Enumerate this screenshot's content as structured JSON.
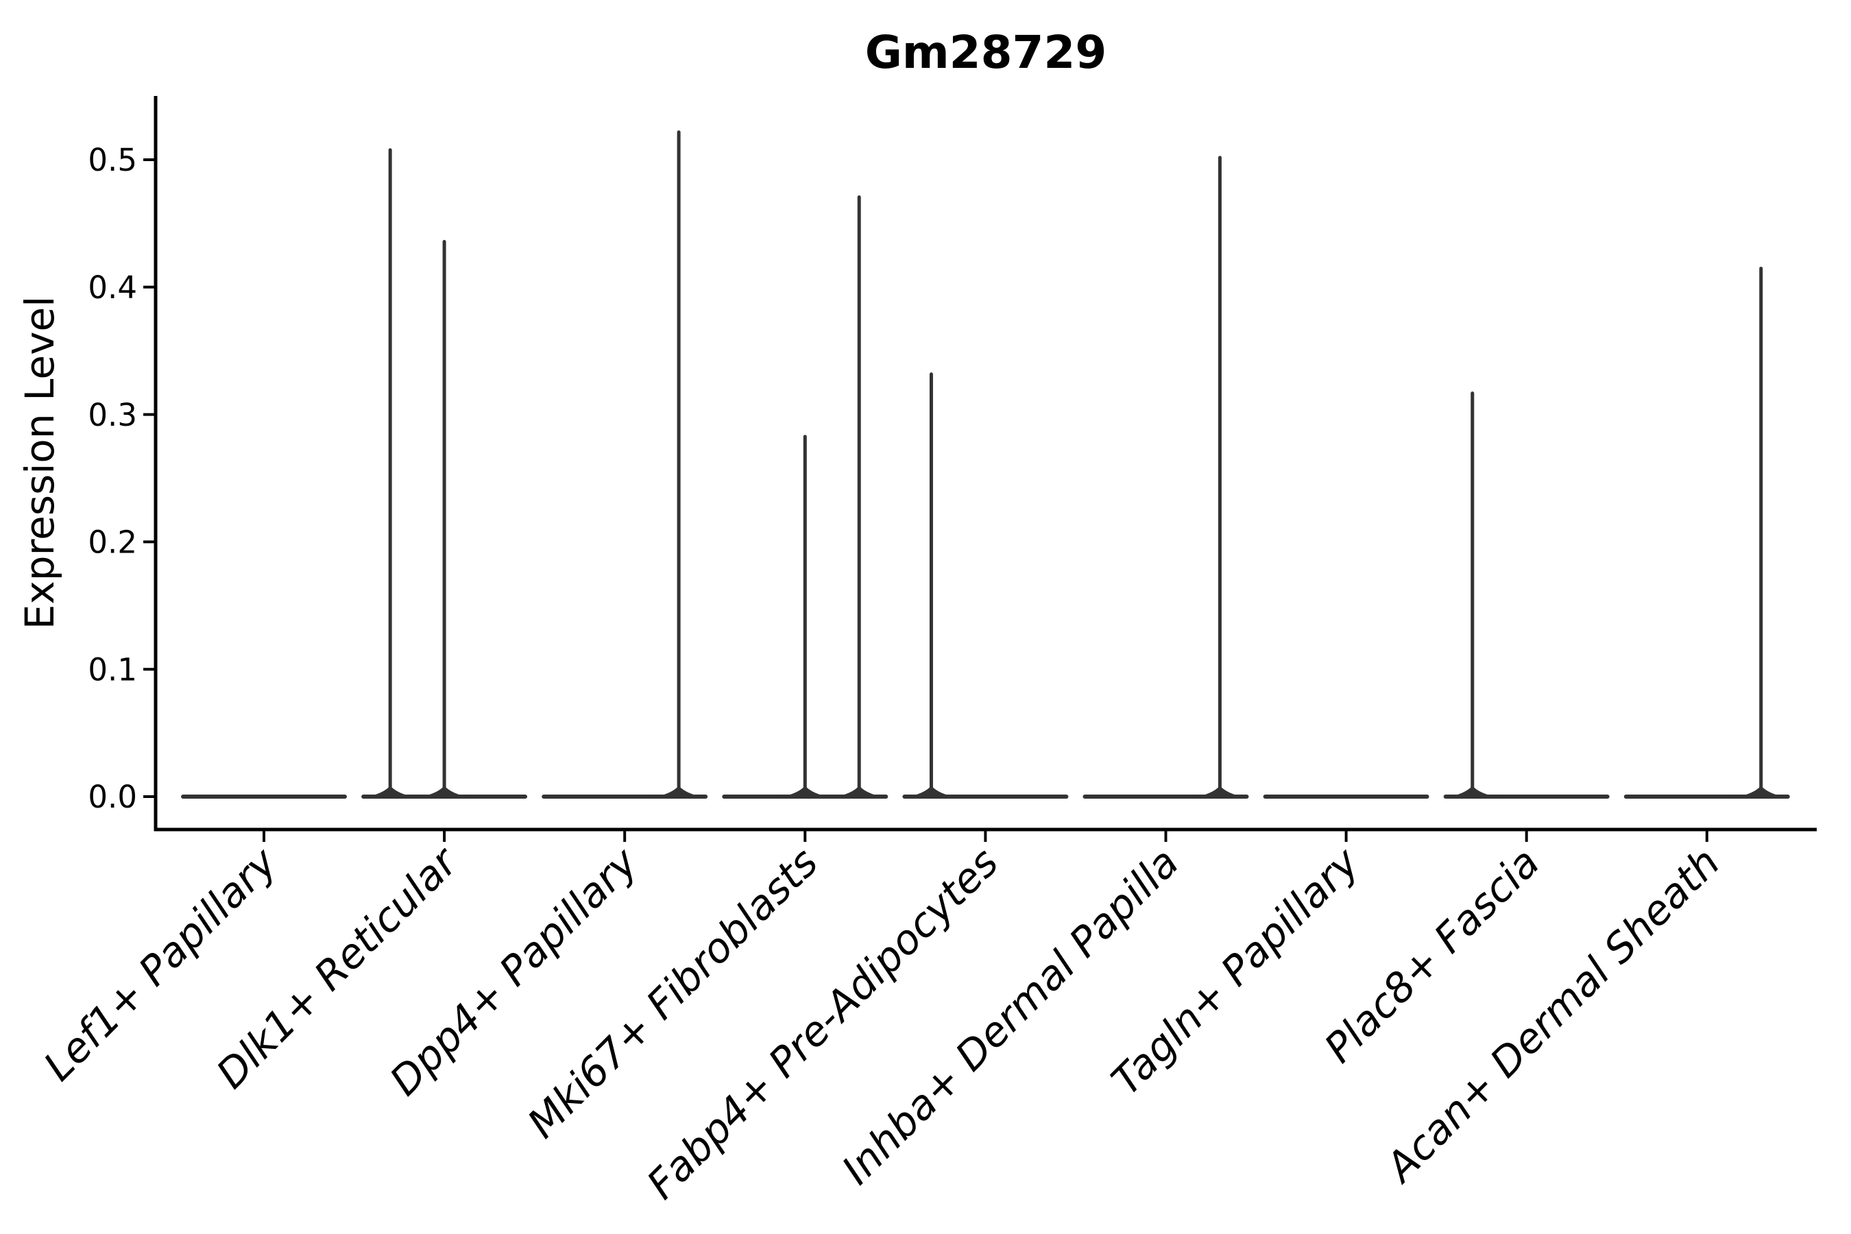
{
  "chart_data": {
    "type": "violin",
    "title": "Gm28729",
    "ylabel": "Expression Level",
    "xlabel": "",
    "yticks": [
      "0.0",
      "0.1",
      "0.2",
      "0.3",
      "0.4",
      "0.5"
    ],
    "ytick_values": [
      0.0,
      0.1,
      0.2,
      0.3,
      0.4,
      0.5
    ],
    "ylim": [
      0.0,
      0.55
    ],
    "grid": false,
    "legend": false,
    "background_color": "#ffffff",
    "violin_color": "#333333",
    "axis_color": "#000000",
    "categories": [
      "Lef1+ Papillary",
      "Dlk1+ Reticular",
      "Dpp4+ Papillary",
      "Mki67+ Fibroblasts",
      "Fabp4+ Pre-Adipocytes",
      "Inhba+ Dermal Papilla",
      "Tagln+ Papillary",
      "Plac8+ Fascia",
      "Acan+ Dermal Sheath"
    ],
    "violins": [
      {
        "category": "Lef1+ Papillary",
        "zero_body": true,
        "spikes": []
      },
      {
        "category": "Dlk1+ Reticular",
        "zero_body": true,
        "spikes": [
          {
            "offset": -0.3,
            "value": 0.509
          },
          {
            "offset": 0.0,
            "value": 0.437
          }
        ]
      },
      {
        "category": "Dpp4+ Papillary",
        "zero_body": true,
        "spikes": [
          {
            "offset": 0.3,
            "value": 0.523
          }
        ]
      },
      {
        "category": "Mki67+ Fibroblasts",
        "zero_body": true,
        "spikes": [
          {
            "offset": 0.0,
            "value": 0.284
          },
          {
            "offset": 0.3,
            "value": 0.472
          }
        ]
      },
      {
        "category": "Fabp4+ Pre-Adipocytes",
        "zero_body": true,
        "spikes": [
          {
            "offset": -0.3,
            "value": 0.333
          }
        ]
      },
      {
        "category": "Inhba+ Dermal Papilla",
        "zero_body": true,
        "spikes": [
          {
            "offset": 0.3,
            "value": 0.503
          }
        ]
      },
      {
        "category": "Tagln+ Papillary",
        "zero_body": true,
        "spikes": []
      },
      {
        "category": "Plac8+ Fascia",
        "zero_body": true,
        "spikes": [
          {
            "offset": -0.3,
            "value": 0.318
          }
        ]
      },
      {
        "category": "Acan+ Dermal Sheath",
        "zero_body": true,
        "spikes": [
          {
            "offset": 0.3,
            "value": 0.416
          }
        ]
      }
    ]
  }
}
